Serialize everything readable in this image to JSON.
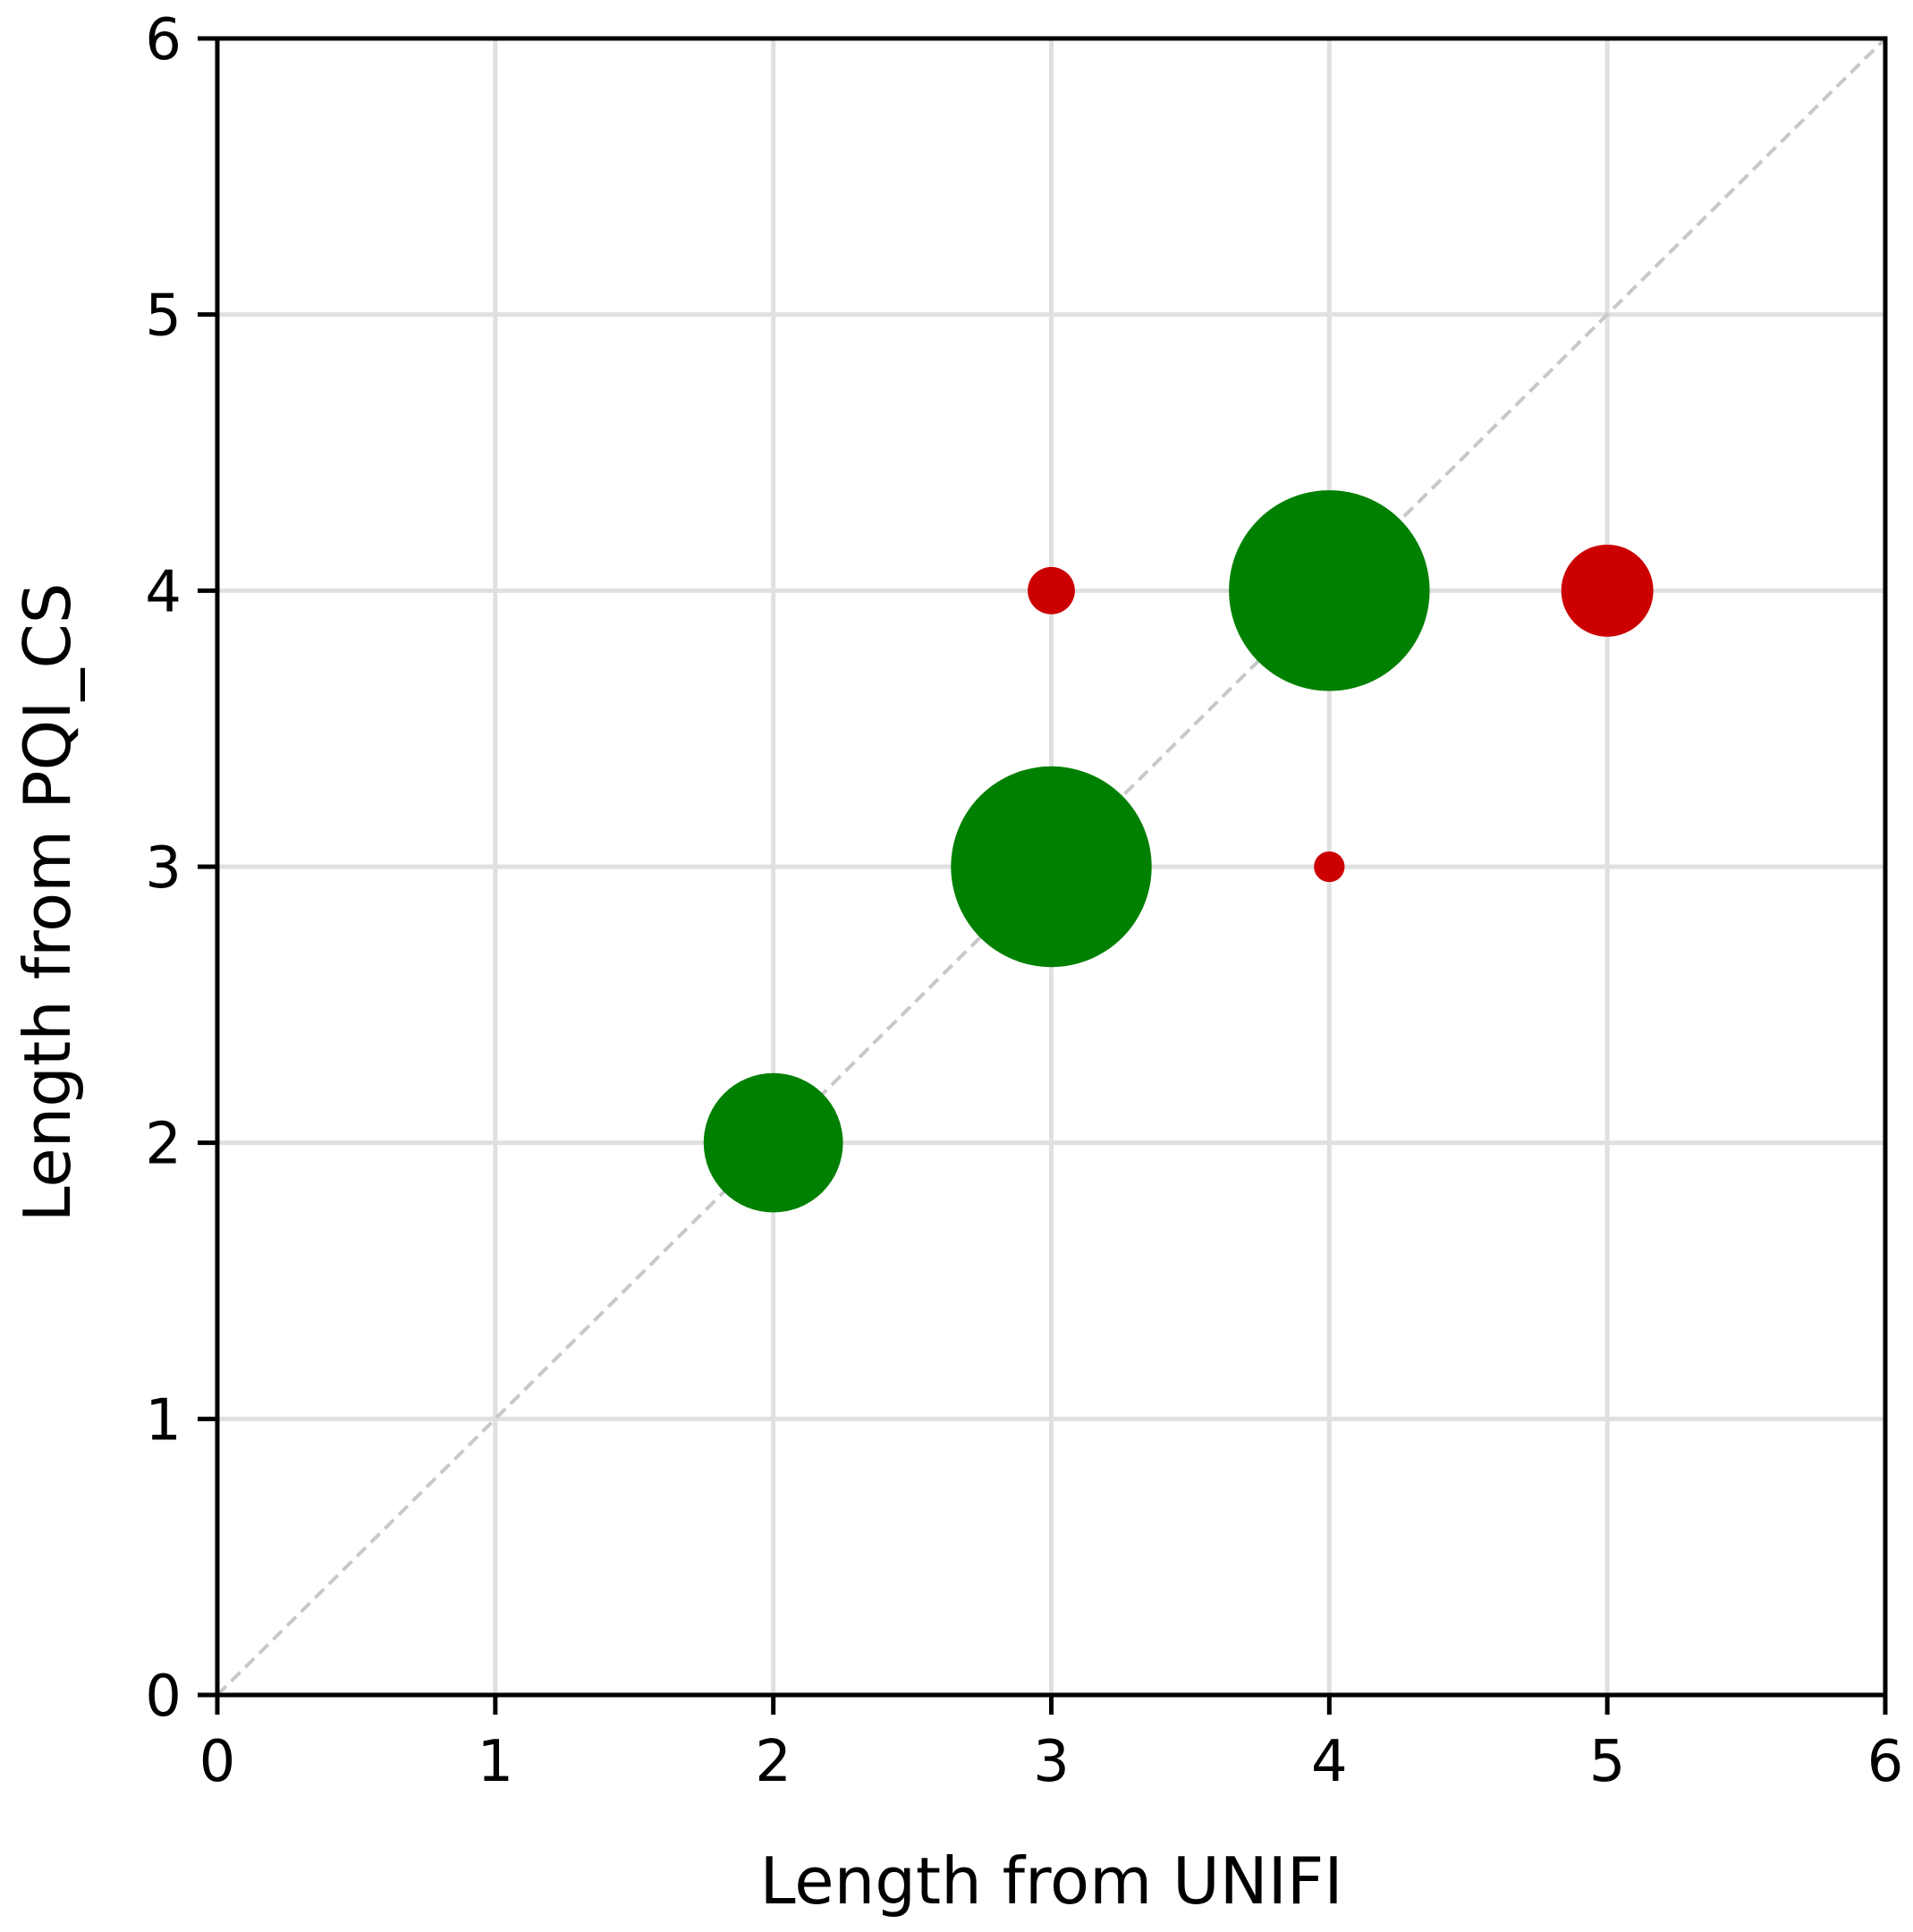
{
  "chart_data": {
    "type": "scatter",
    "title": "",
    "xlabel": "Length from UNIFI",
    "ylabel": "Length from PQI_CS",
    "xlim": [
      0,
      6
    ],
    "ylim": [
      0,
      6
    ],
    "xticks": [
      "0",
      "1",
      "2",
      "3",
      "4",
      "5",
      "6"
    ],
    "yticks": [
      "0",
      "1",
      "2",
      "3",
      "4",
      "5",
      "6"
    ],
    "grid": true,
    "reference_line": {
      "style": "dashed",
      "from": [
        0,
        0
      ],
      "to": [
        6,
        6
      ],
      "color": "#c8c8c8"
    },
    "points": [
      {
        "x": 2,
        "y": 2,
        "size": 0.59,
        "color": "#008000"
      },
      {
        "x": 3,
        "y": 3,
        "size": 0.85,
        "color": "#008000"
      },
      {
        "x": 4,
        "y": 4,
        "size": 0.85,
        "color": "#008000"
      },
      {
        "x": 3,
        "y": 4,
        "size": 0.2,
        "color": "#cc0000"
      },
      {
        "x": 5,
        "y": 4,
        "size": 0.39,
        "color": "#cc0000"
      },
      {
        "x": 4,
        "y": 3,
        "size": 0.13,
        "color": "#cc0000"
      }
    ],
    "colors": {
      "match": "#008000",
      "mismatch": "#cc0000",
      "grid": "#e0e0e0",
      "axis": "#000000"
    }
  }
}
